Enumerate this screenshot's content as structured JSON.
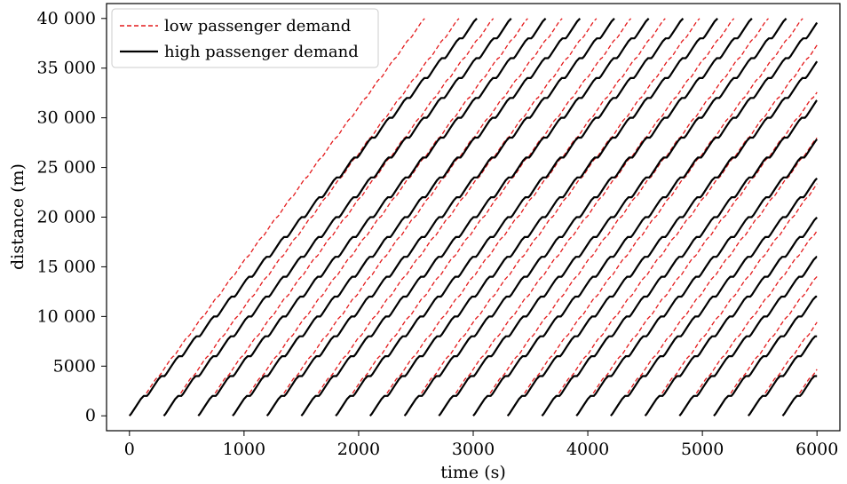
{
  "chart_data": {
    "type": "line",
    "title": "",
    "xlabel": "time (s)",
    "ylabel": "distance (m)",
    "xlim": [
      -200,
      6200
    ],
    "ylim": [
      -1500,
      41500
    ],
    "xticks": [
      0,
      1000,
      2000,
      3000,
      4000,
      5000,
      6000
    ],
    "xtick_labels": [
      "0",
      "1000",
      "2000",
      "3000",
      "4000",
      "5000",
      "6000"
    ],
    "yticks": [
      0,
      5000,
      10000,
      15000,
      20000,
      25000,
      30000,
      35000,
      40000
    ],
    "ytick_labels": [
      "0",
      "5000",
      "10 000",
      "15 000",
      "20 000",
      "25 000",
      "30 000",
      "35 000",
      "40 000"
    ],
    "grid": false,
    "legend_position": "top-left",
    "station_spacing_m": 2000,
    "trip_end_m": 40000,
    "series": [
      {
        "name": "low passenger demand",
        "color": "#e41a1c",
        "dash": "dashed",
        "dwell_s": 4,
        "departures_s": [
          0,
          300,
          600,
          900,
          1200,
          1500,
          1800,
          2100,
          2400,
          2700,
          3000,
          3300,
          3600,
          3900,
          4200,
          4500,
          4800,
          5100,
          5400,
          5700
        ]
      },
      {
        "name": "high passenger demand",
        "color": "#000000",
        "dash": "solid",
        "dwell_s": 28,
        "departures_s": [
          0,
          300,
          600,
          900,
          1200,
          1500,
          1800,
          2100,
          2400,
          2700,
          3000,
          3300,
          3600,
          3900,
          4200,
          4500,
          4800,
          5100,
          5400,
          5700
        ]
      }
    ]
  }
}
